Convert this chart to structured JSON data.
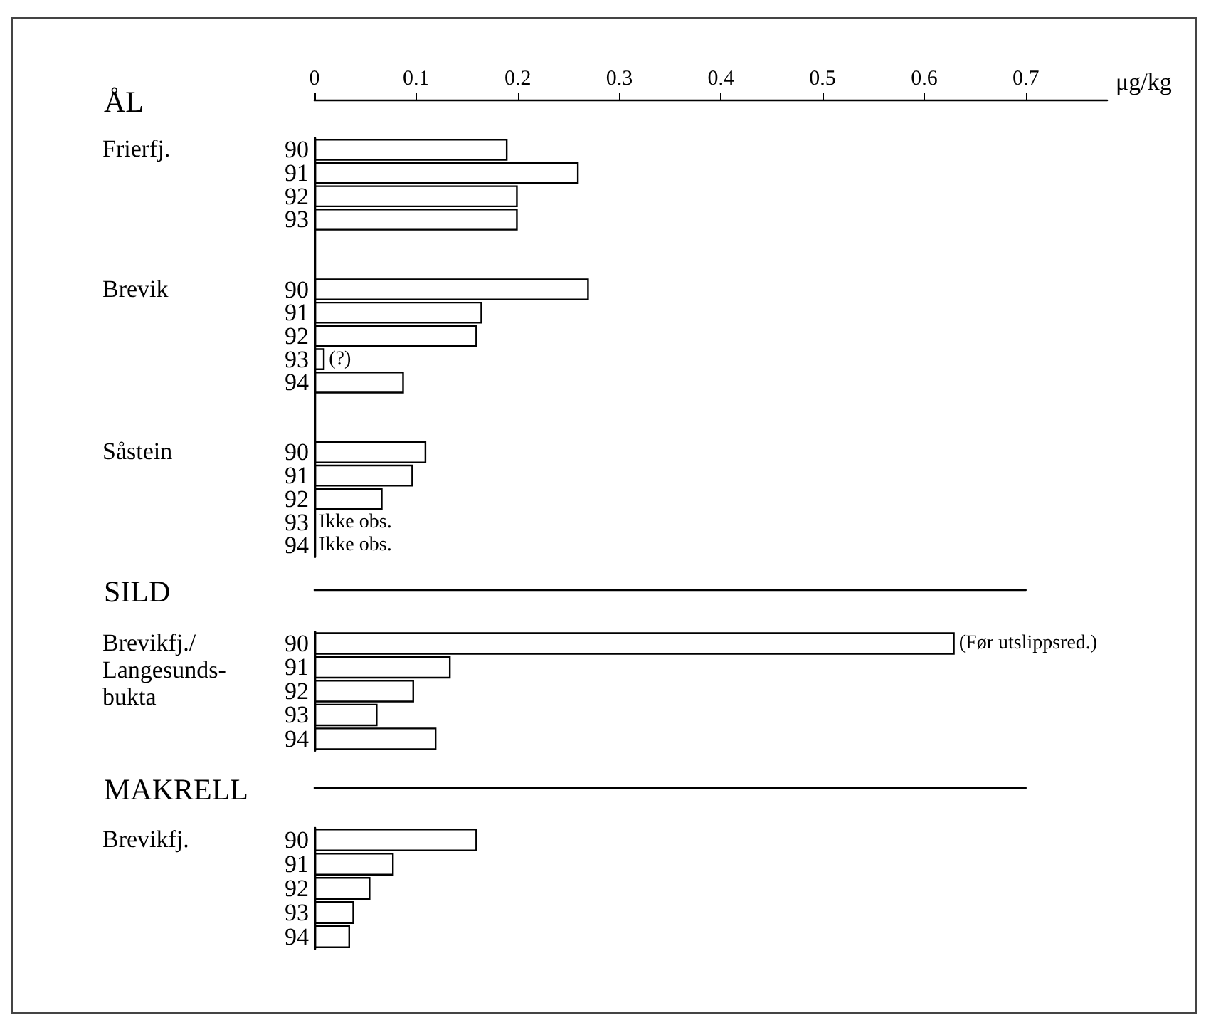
{
  "chart_data": [
    {
      "type": "bar",
      "orientation": "horizontal",
      "title": "ÅL",
      "xlabel": "μg/kg",
      "color": "#ffffff",
      "xlim": [
        0,
        0.78
      ],
      "xticks": [
        0,
        0.1,
        0.2,
        0.3,
        0.4,
        0.5,
        0.6,
        0.7
      ],
      "grid": false,
      "categories": [
        "90",
        "91",
        "92",
        "93",
        null,
        null,
        "90",
        "91",
        "92",
        "93",
        "94",
        null,
        null,
        "90",
        "91",
        "92",
        "93",
        "94"
      ],
      "values": [
        0.19,
        0.26,
        0.2,
        0.2,
        null,
        null,
        0.27,
        0.165,
        0.16,
        0.01,
        0.088,
        null,
        null,
        0.11,
        0.097,
        0.067,
        null,
        null
      ],
      "value_labels": [
        null,
        null,
        null,
        null,
        null,
        null,
        null,
        null,
        null,
        "(?)",
        null,
        null,
        null,
        null,
        null,
        null,
        "Ikke obs.",
        "Ikke obs."
      ],
      "annotations": [
        "Frierfj.",
        "Brevik",
        "Såstein"
      ]
    },
    {
      "type": "bar",
      "orientation": "horizontal",
      "title": "SILD",
      "color": "#ffffff",
      "xlim": [
        0,
        0.7
      ],
      "xticks": [
        0,
        0.1,
        0.2,
        0.3,
        0.4,
        0.5,
        0.6,
        0.7
      ],
      "tick_labels": "y",
      "grid": false,
      "categories": [
        "90",
        "91",
        "92",
        "93",
        "94"
      ],
      "values": [
        0.63,
        0.134,
        0.098,
        0.062,
        0.12
      ],
      "value_labels": [
        "(Før utslippsred.)",
        null,
        null,
        null,
        null
      ],
      "annotations": [
        "Brevikfj./\nLangesunds-\nbukta"
      ]
    },
    {
      "type": "bar",
      "orientation": "horizontal",
      "title": "MAKRELL",
      "color": "#ffffff",
      "xlim": [
        0,
        0.7
      ],
      "xticks": [
        0,
        0.1,
        0.2,
        0.3,
        0.4,
        0.5,
        0.6,
        0.7
      ],
      "tick_labels": "y",
      "grid": false,
      "categories": [
        "90",
        "91",
        "92",
        "93",
        "94"
      ],
      "values": [
        0.16,
        0.078,
        0.055,
        0.039,
        0.035
      ],
      "annotations": [
        "Brevikfj."
      ]
    }
  ]
}
